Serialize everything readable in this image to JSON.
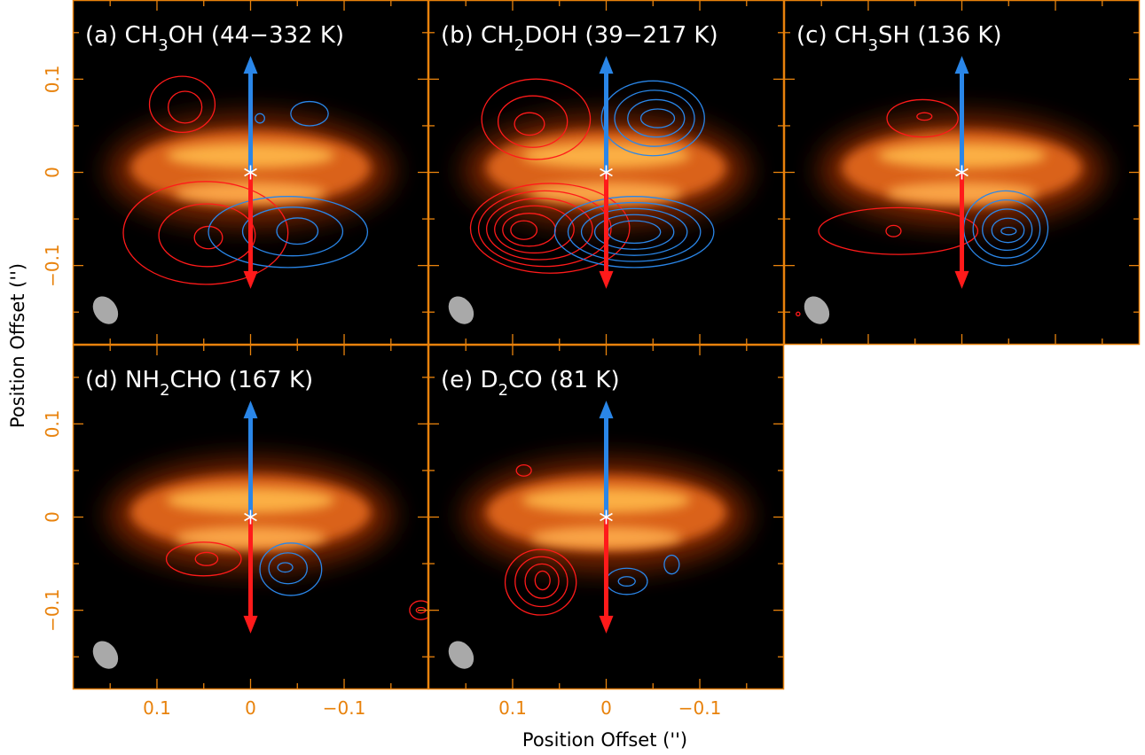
{
  "chart_data": {
    "type": "heatmap",
    "xlabel": "Position Offset ('')",
    "ylabel": "Position Offset ('')",
    "xlim": [
      0.19,
      -0.19
    ],
    "ylim": [
      -0.185,
      0.185
    ],
    "x_ticks": [
      0.1,
      0,
      -0.1
    ],
    "x_tick_labels": [
      "0.1",
      "0",
      "−0.1"
    ],
    "y_ticks": [
      0.1,
      0,
      -0.1
    ],
    "y_tick_labels": [
      "0.1",
      "0",
      "−0.1"
    ],
    "colors": {
      "frame": "#E8820C",
      "tick_label": "#E8820C",
      "redshifted": "#FF1A1A",
      "blueshifted": "#2A86E8",
      "beam": "#A9A9A9",
      "background": "#000000",
      "panel_title": "#FFFFFF"
    },
    "panels": [
      {
        "id": "a",
        "title_parts": [
          "(a) CH",
          "3",
          "OH (44−332 K)"
        ],
        "beam": {
          "x": 0.155,
          "y": -0.148,
          "major": 0.032,
          "minor": 0.024,
          "pa_deg": 35
        },
        "source": {
          "x": 0,
          "y": 0
        },
        "arrow_blue": {
          "x": 0,
          "from_y": 0,
          "to_y": 0.125
        },
        "arrow_red": {
          "x": 0,
          "from_y": 0,
          "to_y": -0.125
        },
        "contours": [
          {
            "color": "red",
            "levels": 2,
            "x": 0.073,
            "y": 0.073,
            "rx": 0.035,
            "ry": 0.03,
            "x2": 0.07,
            "y2": 0.07,
            "rx2": 0.018,
            "ry2": 0.017
          },
          {
            "color": "red",
            "levels": 3,
            "x": 0.048,
            "y": -0.065,
            "rx": 0.088,
            "ry": 0.055,
            "x2": 0.045,
            "y2": -0.07,
            "rx2": 0.015,
            "ry2": 0.012
          },
          {
            "color": "blue",
            "levels": 1,
            "x": -0.063,
            "y": 0.063,
            "rx": 0.02,
            "ry": 0.013,
            "x2": -0.063,
            "y2": 0.063,
            "rx2": 0.02,
            "ry2": 0.013
          },
          {
            "color": "blue",
            "levels": 1,
            "x": -0.01,
            "y": 0.058,
            "rx": 0.005,
            "ry": 0.005,
            "x2": -0.01,
            "y2": 0.058,
            "rx2": 0.005,
            "ry2": 0.005
          },
          {
            "color": "blue",
            "levels": 3,
            "x": -0.04,
            "y": -0.064,
            "rx": 0.085,
            "ry": 0.038,
            "x2": -0.05,
            "y2": -0.063,
            "rx2": 0.022,
            "ry2": 0.014
          }
        ]
      },
      {
        "id": "b",
        "title_parts": [
          "(b) CH",
          "2",
          "DOH (39−217 K)"
        ],
        "beam": {
          "x": 0.155,
          "y": -0.148,
          "major": 0.032,
          "minor": 0.024,
          "pa_deg": 35
        },
        "source": {
          "x": 0,
          "y": 0
        },
        "arrow_blue": {
          "x": 0,
          "from_y": 0,
          "to_y": 0.125
        },
        "arrow_red": {
          "x": 0,
          "from_y": 0,
          "to_y": -0.125
        },
        "contours": [
          {
            "color": "red",
            "levels": 3,
            "x": 0.075,
            "y": 0.057,
            "rx": 0.058,
            "ry": 0.043,
            "x2": 0.082,
            "y2": 0.052,
            "rx2": 0.016,
            "ry2": 0.012
          },
          {
            "color": "red",
            "levels": 6,
            "x": 0.06,
            "y": -0.06,
            "rx": 0.085,
            "ry": 0.048,
            "x2": 0.088,
            "y2": -0.062,
            "rx2": 0.014,
            "ry2": 0.01
          },
          {
            "color": "blue",
            "levels": 4,
            "x": -0.05,
            "y": 0.058,
            "rx": 0.055,
            "ry": 0.04,
            "x2": -0.055,
            "y2": 0.058,
            "rx2": 0.018,
            "ry2": 0.01
          },
          {
            "color": "blue",
            "levels": 5,
            "x": -0.03,
            "y": -0.064,
            "rx": 0.085,
            "ry": 0.038,
            "x2": -0.03,
            "y2": -0.064,
            "rx2": 0.028,
            "ry2": 0.012
          }
        ]
      },
      {
        "id": "c",
        "title_parts": [
          "(c) CH",
          "3",
          "SH (136 K)"
        ],
        "beam": {
          "x": 0.155,
          "y": -0.148,
          "major": 0.032,
          "minor": 0.024,
          "pa_deg": 35
        },
        "source": {
          "x": 0,
          "y": 0
        },
        "arrow_blue": {
          "x": 0,
          "from_y": 0,
          "to_y": 0.125
        },
        "arrow_red": {
          "x": 0,
          "from_y": 0,
          "to_y": -0.125
        },
        "contours": [
          {
            "color": "red",
            "levels": 2,
            "x": 0.042,
            "y": 0.058,
            "rx": 0.038,
            "ry": 0.02,
            "x2": 0.04,
            "y2": 0.06,
            "rx2": 0.008,
            "ry2": 0.004
          },
          {
            "color": "red",
            "levels": 2,
            "x": 0.068,
            "y": -0.063,
            "rx": 0.085,
            "ry": 0.025,
            "x2": 0.073,
            "y2": -0.063,
            "rx2": 0.008,
            "ry2": 0.006
          },
          {
            "color": "blue",
            "levels": 5,
            "x": -0.047,
            "y": -0.06,
            "rx": 0.045,
            "ry": 0.04,
            "x2": -0.05,
            "y2": -0.063,
            "rx2": 0.008,
            "ry2": 0.004
          },
          {
            "color": "red",
            "levels": 1,
            "x": 0.175,
            "y": -0.152,
            "rx": 0.002,
            "ry": 0.002,
            "x2": 0.175,
            "y2": -0.152,
            "rx2": 0.002,
            "ry2": 0.002
          }
        ]
      },
      {
        "id": "d",
        "title_parts": [
          "(d) NH",
          "2",
          "CHO (167 K)"
        ],
        "beam": {
          "x": 0.155,
          "y": -0.148,
          "major": 0.032,
          "minor": 0.024,
          "pa_deg": 35
        },
        "source": {
          "x": 0,
          "y": 0
        },
        "arrow_blue": {
          "x": 0,
          "from_y": 0,
          "to_y": 0.125
        },
        "arrow_red": {
          "x": 0,
          "from_y": 0,
          "to_y": -0.125
        },
        "contours": [
          {
            "color": "red",
            "levels": 2,
            "x": 0.05,
            "y": -0.045,
            "rx": 0.04,
            "ry": 0.018,
            "x2": 0.047,
            "y2": -0.045,
            "rx2": 0.012,
            "ry2": 0.007
          },
          {
            "color": "blue",
            "levels": 3,
            "x": -0.043,
            "y": -0.056,
            "rx": 0.033,
            "ry": 0.028,
            "x2": -0.037,
            "y2": -0.054,
            "rx2": 0.008,
            "ry2": 0.005
          },
          {
            "color": "red",
            "levels": 2,
            "x": -0.182,
            "y": -0.1,
            "rx": 0.012,
            "ry": 0.01,
            "x2": -0.182,
            "y2": -0.1,
            "rx2": 0.005,
            "ry2": 0.003
          }
        ]
      },
      {
        "id": "e",
        "title_parts": [
          "(e) D",
          "2",
          "CO (81 K)"
        ],
        "beam": {
          "x": 0.155,
          "y": -0.148,
          "major": 0.032,
          "minor": 0.024,
          "pa_deg": 35
        },
        "source": {
          "x": 0,
          "y": 0
        },
        "arrow_blue": {
          "x": 0,
          "from_y": 0,
          "to_y": 0.125
        },
        "arrow_red": {
          "x": 0,
          "from_y": 0,
          "to_y": -0.125
        },
        "contours": [
          {
            "color": "red",
            "levels": 1,
            "x": 0.088,
            "y": 0.05,
            "rx": 0.008,
            "ry": 0.006,
            "x2": 0.088,
            "y2": 0.05,
            "rx2": 0.008,
            "ry2": 0.006
          },
          {
            "color": "red",
            "levels": 4,
            "x": 0.07,
            "y": -0.07,
            "rx": 0.038,
            "ry": 0.035,
            "x2": 0.068,
            "y2": -0.068,
            "rx2": 0.008,
            "ry2": 0.01
          },
          {
            "color": "blue",
            "levels": 2,
            "x": -0.022,
            "y": -0.069,
            "rx": 0.022,
            "ry": 0.014,
            "x2": -0.022,
            "y2": -0.069,
            "rx2": 0.009,
            "ry2": 0.005
          },
          {
            "color": "blue",
            "levels": 1,
            "x": -0.07,
            "y": -0.051,
            "rx": 0.008,
            "ry": 0.01,
            "x2": -0.07,
            "y2": -0.051,
            "rx2": 0.008,
            "ry2": 0.01
          }
        ]
      }
    ]
  }
}
